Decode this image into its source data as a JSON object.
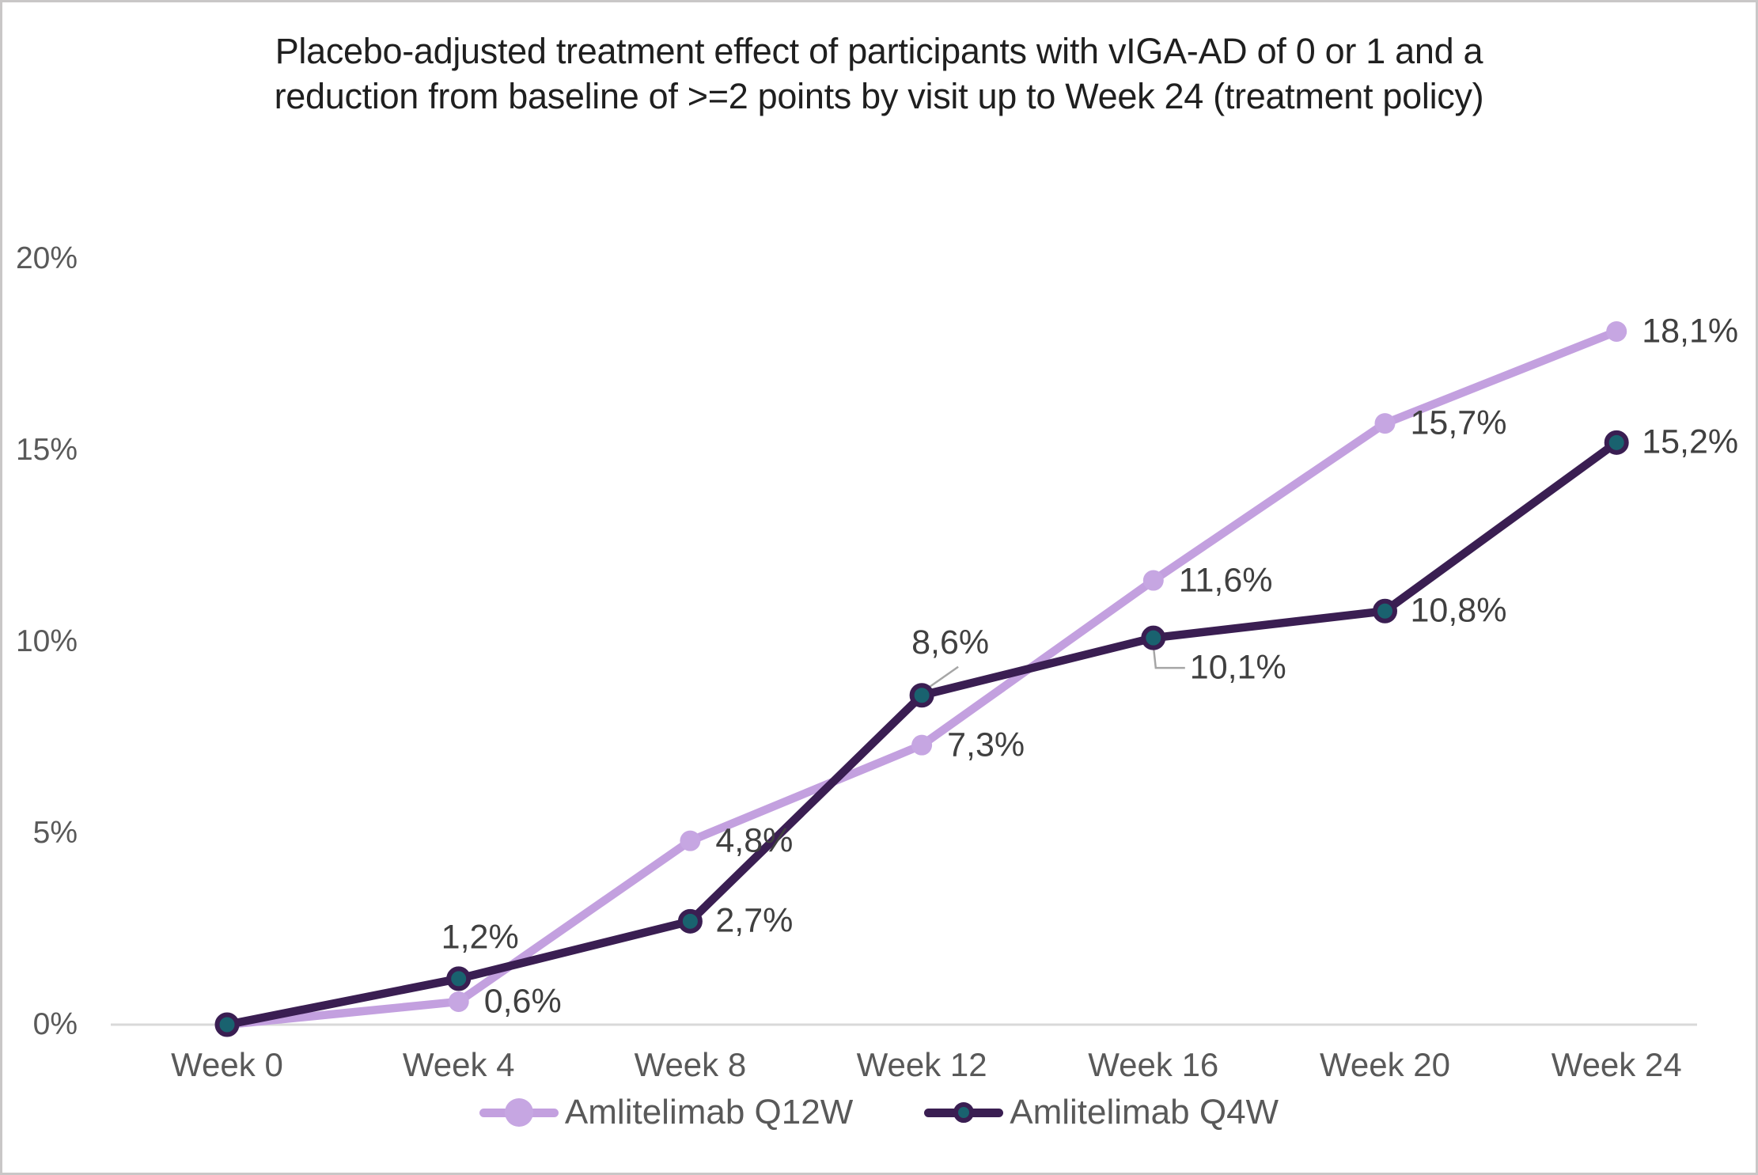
{
  "chart_data": {
    "type": "line",
    "title": "Placebo-adjusted treatment effect of participants with vIGA-AD of 0 or 1 and a reduction from baseline of >=2 points by visit up to Week 24 (treatment policy)",
    "title_lines": [
      "Placebo-adjusted treatment effect of participants with vIGA-AD of 0 or 1 and a",
      "reduction from baseline of >=2 points by visit up to Week 24 (treatment policy)"
    ],
    "categories": [
      "Week 0",
      "Week 4",
      "Week 8",
      "Week 12",
      "Week 16",
      "Week 20",
      "Week 24"
    ],
    "y_ticks": [
      "0%",
      "5%",
      "10%",
      "15%",
      "20%"
    ],
    "y_tick_values": [
      0,
      5,
      10,
      15,
      20
    ],
    "ylim": [
      0,
      20
    ],
    "grid": false,
    "legend_position": "bottom",
    "decimal_separator": ",",
    "series": [
      {
        "name": "Amlitelimab Q12W",
        "color": "#C3A0DF",
        "marker_fill": "#C6A6E2",
        "marker_ring": "#C6A6E2",
        "values": [
          0,
          0.6,
          4.8,
          7.3,
          11.6,
          15.7,
          18.1
        ],
        "data_labels": [
          "",
          "0,6%",
          "4,8%",
          "7,3%",
          "11,6%",
          "15,7%",
          "18,1%"
        ],
        "label_placements": [
          "none",
          "right",
          "right",
          "right",
          "right",
          "right",
          "right"
        ]
      },
      {
        "name": "Amlitelimab Q4W",
        "color": "#3A1E52",
        "marker_fill": "#19626F",
        "marker_ring": "#3A1E52",
        "values": [
          0,
          1.2,
          2.7,
          8.6,
          10.1,
          10.8,
          15.2
        ],
        "data_labels": [
          "",
          "1,2%",
          "2,7%",
          "8,6%",
          "10,1%",
          "10,8%",
          "15,2%"
        ],
        "label_placements": [
          "none",
          "above",
          "right",
          "leader-above",
          "leader-below",
          "right",
          "right"
        ]
      }
    ],
    "colors": {
      "axis_line": "#D9D9D9",
      "tick_text": "#595959",
      "data_label_text": "#404040",
      "leader_line": "#A6A6A6",
      "title_text": "#1F1F1F",
      "legend_text": "#595959"
    }
  }
}
